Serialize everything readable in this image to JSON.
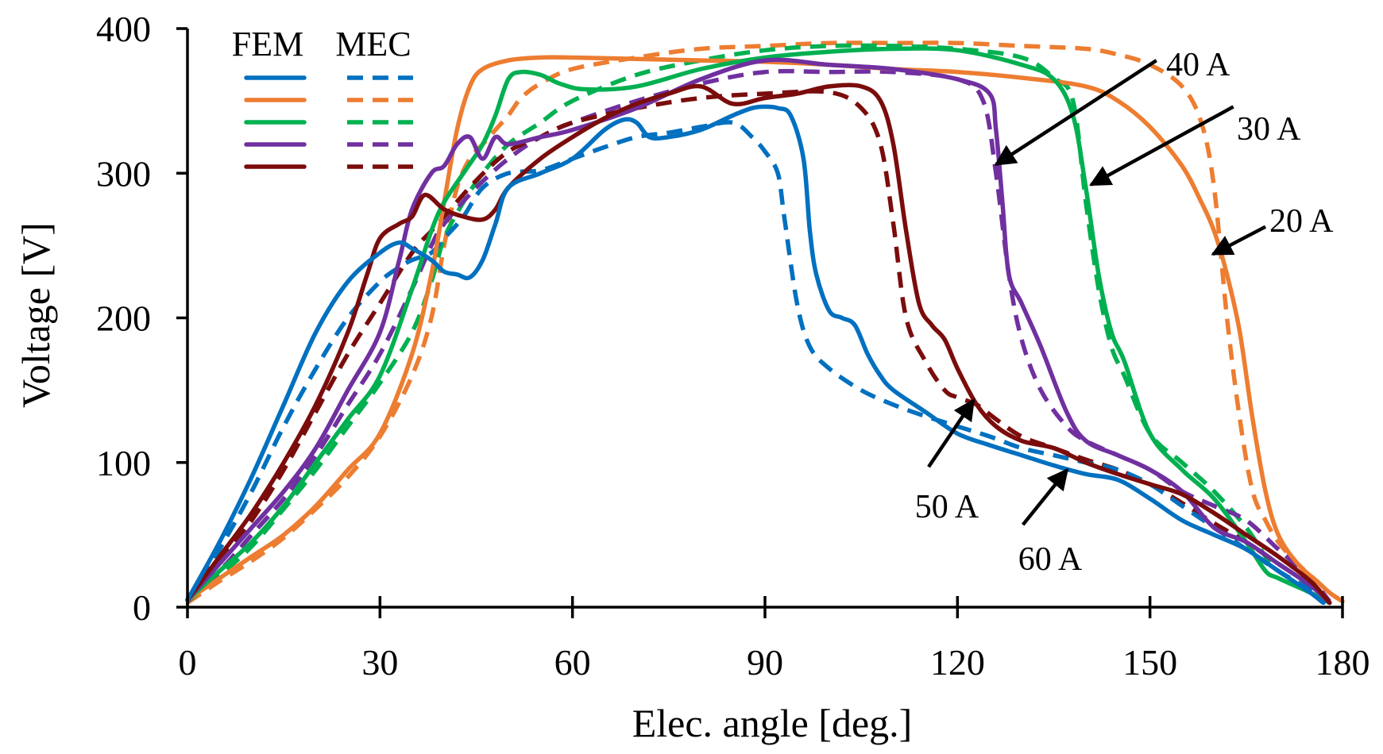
{
  "chart_data": {
    "type": "line",
    "title": "",
    "xlabel": "Elec. angle [deg.]",
    "ylabel": "Voltage [V]",
    "xlim": [
      0,
      180
    ],
    "ylim": [
      0,
      400
    ],
    "x_ticks": [
      0,
      30,
      60,
      90,
      120,
      150,
      180
    ],
    "y_ticks": [
      0,
      100,
      200,
      300,
      400
    ],
    "grid": false,
    "legend": {
      "position": "top-left",
      "headers": [
        "FEM",
        "MEC"
      ],
      "rows": [
        "20 A",
        "30 A",
        "40 A",
        "50 A",
        "60 A"
      ]
    },
    "colors": {
      "20 A": "#ed7d31",
      "30 A": "#00b050",
      "40 A": "#7030a0",
      "50 A": "#7b0c0c",
      "60 A": "#0070c0"
    },
    "legend_order_colors": [
      "#0070c0",
      "#ed7d31",
      "#00b050",
      "#7030a0",
      "#7b0c0c"
    ],
    "series": [
      {
        "name": "20 A FEM",
        "current": "20 A",
        "method": "FEM",
        "x": [
          0,
          5,
          10,
          15,
          20,
          25,
          30,
          35,
          38,
          40,
          42,
          44,
          46,
          50,
          55,
          60,
          70,
          80,
          90,
          100,
          110,
          120,
          130,
          140,
          145,
          150,
          155,
          158,
          160,
          162,
          164,
          166,
          168,
          170,
          173,
          176,
          178,
          180
        ],
        "y": [
          5,
          20,
          35,
          50,
          70,
          95,
          120,
          175,
          230,
          280,
          330,
          360,
          372,
          378,
          380,
          380,
          379,
          378,
          377,
          375,
          372,
          370,
          366,
          360,
          350,
          332,
          305,
          280,
          260,
          230,
          190,
          130,
          80,
          50,
          30,
          18,
          10,
          4
        ]
      },
      {
        "name": "20 A MEC",
        "current": "20 A",
        "method": "MEC",
        "x": [
          0,
          5,
          10,
          15,
          20,
          25,
          30,
          35,
          38,
          40,
          42,
          44,
          46,
          48,
          50,
          52,
          55,
          60,
          70,
          80,
          90,
          100,
          110,
          120,
          130,
          140,
          145,
          150,
          155,
          158,
          160,
          162,
          164,
          166,
          168,
          170,
          173,
          176,
          178,
          180
        ],
        "y": [
          3,
          18,
          32,
          48,
          68,
          90,
          118,
          160,
          200,
          250,
          290,
          310,
          320,
          330,
          340,
          352,
          362,
          372,
          380,
          386,
          388,
          390,
          390,
          390,
          388,
          386,
          382,
          375,
          360,
          335,
          290,
          200,
          130,
          80,
          60,
          45,
          30,
          18,
          10,
          4
        ]
      },
      {
        "name": "30 A FEM",
        "current": "30 A",
        "method": "FEM",
        "x": [
          0,
          5,
          10,
          15,
          20,
          25,
          30,
          35,
          38,
          40,
          43,
          46,
          48,
          50,
          52,
          55,
          58,
          62,
          70,
          80,
          90,
          100,
          110,
          120,
          130,
          135,
          138,
          140,
          142,
          144,
          146,
          150,
          155,
          160,
          165,
          168,
          170,
          175,
          178
        ],
        "y": [
          5,
          25,
          45,
          70,
          100,
          130,
          160,
          220,
          260,
          280,
          300,
          320,
          340,
          365,
          370,
          368,
          362,
          358,
          360,
          372,
          380,
          384,
          386,
          385,
          375,
          365,
          340,
          290,
          230,
          190,
          170,
          120,
          95,
          75,
          45,
          25,
          20,
          10,
          3
        ]
      },
      {
        "name": "30 A MEC",
        "current": "30 A",
        "method": "MEC",
        "x": [
          0,
          5,
          10,
          15,
          20,
          25,
          30,
          35,
          38,
          40,
          43,
          46,
          50,
          55,
          60,
          70,
          80,
          90,
          100,
          110,
          120,
          130,
          135,
          138,
          140,
          142,
          144,
          146,
          150,
          155,
          160,
          165,
          168,
          170,
          175,
          178
        ],
        "y": [
          4,
          22,
          42,
          68,
          95,
          125,
          155,
          190,
          225,
          255,
          280,
          300,
          320,
          335,
          350,
          368,
          378,
          385,
          388,
          388,
          386,
          380,
          366,
          350,
          280,
          220,
          180,
          160,
          120,
          100,
          80,
          55,
          35,
          25,
          12,
          4
        ]
      },
      {
        "name": "40 A FEM",
        "current": "40 A",
        "method": "FEM",
        "x": [
          0,
          5,
          10,
          15,
          20,
          25,
          30,
          33,
          35,
          38,
          40,
          42,
          44,
          46,
          48,
          50,
          55,
          60,
          70,
          80,
          90,
          100,
          110,
          120,
          125,
          126,
          127,
          128,
          130,
          133,
          137,
          140,
          145,
          150,
          155,
          160,
          165,
          170,
          175,
          178
        ],
        "y": [
          5,
          30,
          55,
          80,
          110,
          150,
          190,
          240,
          275,
          300,
          305,
          320,
          325,
          310,
          325,
          320,
          325,
          330,
          345,
          365,
          378,
          375,
          372,
          365,
          355,
          330,
          280,
          230,
          210,
          180,
          135,
          115,
          105,
          95,
          80,
          55,
          45,
          30,
          15,
          3
        ]
      },
      {
        "name": "40 A MEC",
        "current": "40 A",
        "method": "MEC",
        "x": [
          0,
          5,
          10,
          15,
          20,
          25,
          30,
          35,
          38,
          40,
          45,
          50,
          55,
          60,
          70,
          80,
          90,
          100,
          110,
          120,
          124,
          126,
          128,
          130,
          133,
          137,
          140,
          145,
          150,
          155,
          160,
          165,
          170,
          175,
          178
        ],
        "y": [
          4,
          25,
          50,
          75,
          105,
          140,
          175,
          220,
          250,
          265,
          290,
          310,
          325,
          335,
          350,
          362,
          370,
          370,
          370,
          365,
          350,
          300,
          230,
          185,
          150,
          125,
          115,
          105,
          95,
          80,
          70,
          60,
          40,
          20,
          4
        ]
      },
      {
        "name": "50 A FEM",
        "current": "50 A",
        "method": "FEM",
        "x": [
          0,
          5,
          10,
          15,
          20,
          25,
          28,
          30,
          33,
          35,
          37,
          40,
          43,
          46,
          48,
          50,
          55,
          60,
          65,
          70,
          75,
          80,
          85,
          90,
          95,
          100,
          105,
          108,
          110,
          112,
          114,
          116,
          118,
          120,
          123,
          126,
          130,
          135,
          140,
          145,
          150,
          155,
          160,
          165,
          170,
          175,
          178
        ],
        "y": [
          5,
          35,
          65,
          100,
          140,
          190,
          230,
          255,
          265,
          270,
          285,
          275,
          270,
          268,
          275,
          290,
          310,
          325,
          338,
          348,
          355,
          360,
          348,
          352,
          355,
          360,
          360,
          350,
          320,
          260,
          210,
          195,
          185,
          165,
          140,
          125,
          115,
          110,
          100,
          92,
          85,
          78,
          65,
          50,
          35,
          18,
          3
        ]
      },
      {
        "name": "50 A MEC",
        "current": "50 A",
        "method": "MEC",
        "x": [
          0,
          5,
          10,
          15,
          20,
          25,
          30,
          35,
          38,
          40,
          45,
          50,
          55,
          60,
          70,
          80,
          90,
          100,
          105,
          108,
          110,
          112,
          115,
          118,
          120,
          123,
          126,
          130,
          135,
          140,
          145,
          150,
          155,
          160,
          165,
          170,
          175,
          178
        ],
        "y": [
          4,
          32,
          60,
          95,
          135,
          175,
          210,
          245,
          260,
          270,
          295,
          315,
          325,
          335,
          345,
          352,
          355,
          356,
          345,
          320,
          265,
          200,
          170,
          150,
          145,
          140,
          130,
          118,
          110,
          102,
          95,
          85,
          72,
          58,
          45,
          30,
          15,
          3
        ]
      },
      {
        "name": "60 A FEM",
        "current": "60 A",
        "method": "FEM",
        "x": [
          0,
          5,
          10,
          15,
          20,
          25,
          30,
          33,
          35,
          38,
          40,
          42,
          44,
          46,
          48,
          50,
          55,
          60,
          65,
          68,
          70,
          72,
          75,
          80,
          85,
          88,
          90,
          92,
          94,
          96,
          97,
          98,
          100,
          102,
          104,
          106,
          108,
          110,
          115,
          120,
          125,
          130,
          135,
          140,
          145,
          150,
          155,
          160,
          165,
          170,
          175,
          177
        ],
        "y": [
          5,
          45,
          90,
          140,
          190,
          225,
          245,
          252,
          248,
          240,
          232,
          230,
          228,
          240,
          265,
          290,
          300,
          310,
          330,
          337,
          335,
          325,
          325,
          330,
          340,
          345,
          346,
          345,
          340,
          310,
          260,
          230,
          205,
          200,
          195,
          175,
          160,
          150,
          135,
          120,
          112,
          105,
          98,
          92,
          88,
          75,
          60,
          50,
          40,
          25,
          10,
          3
        ]
      },
      {
        "name": "60 A MEC",
        "current": "60 A",
        "method": "MEC",
        "x": [
          0,
          5,
          10,
          15,
          20,
          25,
          30,
          33,
          35,
          38,
          40,
          43,
          46,
          50,
          55,
          60,
          65,
          70,
          75,
          80,
          85,
          88,
          90,
          92,
          93,
          95,
          97,
          100,
          105,
          110,
          115,
          120,
          125,
          130,
          135,
          140,
          145,
          150,
          155,
          160,
          165,
          170,
          175,
          178
        ],
        "y": [
          4,
          40,
          80,
          125,
          165,
          200,
          225,
          235,
          240,
          245,
          255,
          270,
          290,
          300,
          302,
          310,
          318,
          325,
          328,
          332,
          335,
          325,
          315,
          300,
          270,
          210,
          180,
          165,
          150,
          140,
          132,
          125,
          118,
          110,
          105,
          100,
          95,
          85,
          70,
          55,
          40,
          25,
          12,
          3
        ]
      }
    ],
    "annotations": [
      {
        "label": "20 A",
        "arrow_from": [
          168.0,
          263
        ],
        "arrow_to": [
          159.8,
          244
        ]
      },
      {
        "label": "30 A",
        "arrow_from": [
          163.0,
          346
        ],
        "arrow_to": [
          140.8,
          292
        ]
      },
      {
        "label": "40 A",
        "arrow_from": [
          151.0,
          378
        ],
        "arrow_to": [
          126.0,
          306
        ]
      },
      {
        "label": "50 A",
        "arrow_from": [
          115.5,
          97
        ],
        "arrow_to": [
          122.5,
          143
        ]
      },
      {
        "label": "60 A",
        "arrow_from": [
          130.2,
          57
        ],
        "arrow_to": [
          137.1,
          95
        ]
      }
    ]
  }
}
